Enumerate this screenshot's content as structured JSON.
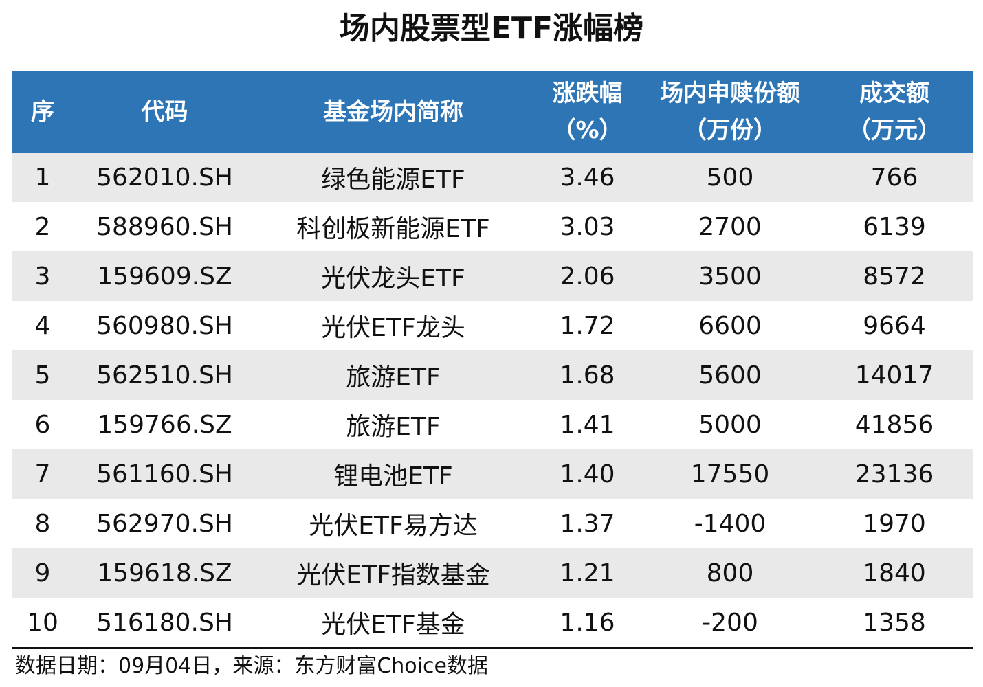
{
  "title": "场内股票型ETF涨幅榜",
  "header": {
    "idx": "序",
    "code": "代码",
    "name": "基金场内简称",
    "pct_line1": "涨跌幅",
    "pct_line2": "（%）",
    "sub_line1": "场内申赎份额",
    "sub_line2": "（万份）",
    "amt_line1": "成交额",
    "amt_line2": "（万元）"
  },
  "rows": [
    {
      "idx": "1",
      "code": "562010.SH",
      "name": "绿色能源ETF",
      "pct": "3.46",
      "sub": "500",
      "amt": "766"
    },
    {
      "idx": "2",
      "code": "588960.SH",
      "name": "科创板新能源ETF",
      "pct": "3.03",
      "sub": "2700",
      "amt": "6139"
    },
    {
      "idx": "3",
      "code": "159609.SZ",
      "name": "光伏龙头ETF",
      "pct": "2.06",
      "sub": "3500",
      "amt": "8572"
    },
    {
      "idx": "4",
      "code": "560980.SH",
      "name": "光伏ETF龙头",
      "pct": "1.72",
      "sub": "6600",
      "amt": "9664"
    },
    {
      "idx": "5",
      "code": "562510.SH",
      "name": "旅游ETF",
      "pct": "1.68",
      "sub": "5600",
      "amt": "14017"
    },
    {
      "idx": "6",
      "code": "159766.SZ",
      "name": "旅游ETF",
      "pct": "1.41",
      "sub": "5000",
      "amt": "41856"
    },
    {
      "idx": "7",
      "code": "561160.SH",
      "name": "锂电池ETF",
      "pct": "1.40",
      "sub": "17550",
      "amt": "23136"
    },
    {
      "idx": "8",
      "code": "562970.SH",
      "name": "光伏ETF易方达",
      "pct": "1.37",
      "sub": "-1400",
      "amt": "1970"
    },
    {
      "idx": "9",
      "code": "159618.SZ",
      "name": "光伏ETF指数基金",
      "pct": "1.21",
      "sub": "800",
      "amt": "1840"
    },
    {
      "idx": "10",
      "code": "516180.SH",
      "name": "光伏ETF基金",
      "pct": "1.16",
      "sub": "-200",
      "amt": "1358"
    }
  ],
  "footer": "数据日期：09月04日，来源：东方财富Choice数据",
  "colors": {
    "header_bg": "#2e75b6",
    "header_text": "#ffffff",
    "stripe": "#e9e9e9"
  }
}
